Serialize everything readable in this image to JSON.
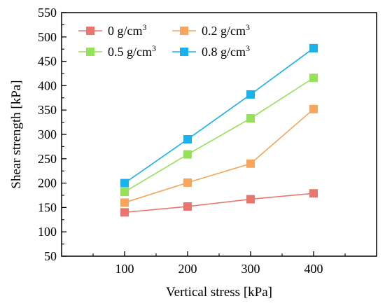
{
  "chart_data": {
    "type": "line",
    "x": [
      100,
      200,
      300,
      400
    ],
    "xlabel": "Vertical stress [kPa]",
    "ylabel": "Shear strength [kPa]",
    "xlim": [
      0,
      500
    ],
    "ylim": [
      50,
      550
    ],
    "xticks": [
      100,
      200,
      300,
      400
    ],
    "yticks": [
      50,
      100,
      150,
      200,
      250,
      300,
      350,
      400,
      450,
      500,
      550
    ],
    "grid": false,
    "legend_position": "top-left",
    "marker": "square",
    "series": [
      {
        "name": "0 g/cm",
        "sup": "3",
        "color": "#e8766e",
        "values": [
          140,
          152,
          167,
          179
        ]
      },
      {
        "name": "0.2 g/cm",
        "sup": "3",
        "color": "#f5a55c",
        "values": [
          160,
          201,
          240,
          352
        ]
      },
      {
        "name": "0.5 g/cm",
        "sup": "3",
        "color": "#97e05a",
        "values": [
          182,
          259,
          333,
          416
        ]
      },
      {
        "name": "0.8 g/cm",
        "sup": "3",
        "color": "#1ab2ec",
        "values": [
          200,
          290,
          382,
          477
        ]
      }
    ]
  }
}
